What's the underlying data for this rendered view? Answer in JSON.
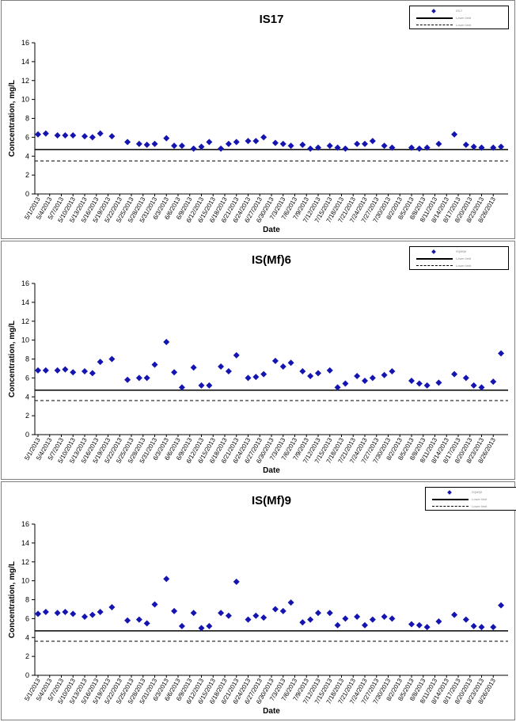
{
  "chart_data": [
    {
      "type": "scatter",
      "title": "IS17",
      "xlabel": "Date",
      "ylabel": "Concentration, mg/L",
      "ylim": [
        0,
        16
      ],
      "yticks": [
        0,
        2,
        4,
        6,
        8,
        10,
        12,
        14,
        16
      ],
      "x_tick_labels": [
        "5/1/2013",
        "5/4/2013",
        "5/7/2013",
        "5/10/2013",
        "5/13/2013",
        "5/16/2013",
        "5/19/2013",
        "5/22/2013",
        "5/25/2013",
        "5/28/2013",
        "5/31/2013",
        "6/3/2013",
        "6/6/2013",
        "6/9/2013",
        "6/12/2013",
        "6/15/2013",
        "6/18/2013",
        "6/21/2013",
        "6/24/2013",
        "6/27/2013",
        "6/30/2013",
        "7/3/2013",
        "7/6/2013",
        "7/9/2013",
        "7/12/2013",
        "7/15/2013",
        "7/18/2013",
        "7/21/2013",
        "7/24/2013",
        "7/27/2013",
        "7/30/2013",
        "8/2/2013",
        "8/5/2013",
        "8/8/2013",
        "8/11/2013",
        "8/14/2013",
        "8/17/2013",
        "8/20/2013",
        "8/23/2013",
        "8/26/2013"
      ],
      "grid": false,
      "legend_position": "top-right",
      "legend_labels": [
        "IS17",
        "Lower limit",
        "Lower limit"
      ],
      "series": [
        {
          "marker": "diamond",
          "color": "#1414b0",
          "x": [
            "5/1/2013",
            "5/3/2013",
            "5/6/2013",
            "5/8/2013",
            "5/10/2013",
            "5/13/2013",
            "5/15/2013",
            "5/17/2013",
            "5/20/2013",
            "5/24/2013",
            "5/27/2013",
            "5/29/2013",
            "5/31/2013",
            "6/3/2013",
            "6/5/2013",
            "6/7/2013",
            "6/10/2013",
            "6/12/2013",
            "6/14/2013",
            "6/17/2013",
            "6/19/2013",
            "6/21/2013",
            "6/24/2013",
            "6/26/2013",
            "6/28/2013",
            "7/1/2013",
            "7/3/2013",
            "7/5/2013",
            "7/8/2013",
            "7/10/2013",
            "7/12/2013",
            "7/15/2013",
            "7/17/2013",
            "7/19/2013",
            "7/22/2013",
            "7/24/2013",
            "7/26/2013",
            "7/29/2013",
            "7/31/2013",
            "8/5/2013",
            "8/7/2013",
            "8/9/2013",
            "8/12/2013",
            "8/16/2013",
            "8/19/2013",
            "8/21/2013",
            "8/23/2013",
            "8/26/2013",
            "8/28/2013"
          ],
          "y": [
            6.3,
            6.4,
            6.2,
            6.2,
            6.2,
            6.1,
            6.0,
            6.4,
            6.1,
            5.5,
            5.3,
            5.2,
            5.3,
            5.9,
            5.1,
            5.1,
            4.8,
            5.0,
            5.5,
            4.8,
            5.3,
            5.5,
            5.6,
            5.6,
            6.0,
            5.4,
            5.3,
            5.1,
            5.2,
            4.8,
            4.9,
            5.1,
            4.9,
            4.8,
            5.3,
            5.3,
            5.6,
            5.1,
            4.9,
            4.9,
            4.8,
            4.9,
            5.3,
            6.3,
            5.2,
            5.0,
            4.9,
            4.9,
            5.0
          ]
        }
      ],
      "reference_lines": [
        {
          "style": "solid",
          "y": 4.7
        },
        {
          "style": "dashed",
          "y": 3.5
        }
      ]
    },
    {
      "type": "scatter",
      "title": "IS(Mf)6",
      "xlabel": "Date",
      "ylabel": "Concentration, mg/L",
      "ylim": [
        0,
        16
      ],
      "yticks": [
        0,
        2,
        4,
        6,
        8,
        10,
        12,
        14,
        16
      ],
      "x_tick_labels": [
        "5/1/2013",
        "5/4/2013",
        "5/7/2013",
        "5/10/2013",
        "5/13/2013",
        "5/16/2013",
        "5/19/2013",
        "5/22/2013",
        "5/25/2013",
        "5/28/2013",
        "5/31/2013",
        "6/3/2013",
        "6/6/2013",
        "6/9/2013",
        "6/12/2013",
        "6/15/2013",
        "6/18/2013",
        "6/21/2013",
        "6/24/2013",
        "6/27/2013",
        "6/30/2013",
        "7/3/2013",
        "7/6/2013",
        "7/9/2013",
        "7/12/2013",
        "7/15/2013",
        "7/18/2013",
        "7/21/2013",
        "7/24/2013",
        "7/27/2013",
        "7/30/2013",
        "8/2/2013",
        "8/5/2013",
        "8/8/2013",
        "8/11/2013",
        "8/14/2013",
        "8/17/2013",
        "8/20/2013",
        "8/23/2013",
        "8/26/2013"
      ],
      "grid": false,
      "legend_position": "top-right",
      "legend_labels": [
        "IS(Mf)6",
        "Lower limit",
        "Lower limit"
      ],
      "series": [
        {
          "marker": "diamond",
          "color": "#1414b0",
          "x": [
            "5/1/2013",
            "5/3/2013",
            "5/6/2013",
            "5/8/2013",
            "5/10/2013",
            "5/13/2013",
            "5/15/2013",
            "5/17/2013",
            "5/20/2013",
            "5/24/2013",
            "5/27/2013",
            "5/29/2013",
            "5/31/2013",
            "6/3/2013",
            "6/5/2013",
            "6/7/2013",
            "6/10/2013",
            "6/12/2013",
            "6/14/2013",
            "6/17/2013",
            "6/19/2013",
            "6/21/2013",
            "6/24/2013",
            "6/26/2013",
            "6/28/2013",
            "7/1/2013",
            "7/3/2013",
            "7/5/2013",
            "7/8/2013",
            "7/10/2013",
            "7/12/2013",
            "7/15/2013",
            "7/17/2013",
            "7/19/2013",
            "7/22/2013",
            "7/24/2013",
            "7/26/2013",
            "7/29/2013",
            "7/31/2013",
            "8/5/2013",
            "8/7/2013",
            "8/9/2013",
            "8/12/2013",
            "8/16/2013",
            "8/19/2013",
            "8/21/2013",
            "8/23/2013",
            "8/26/2013",
            "8/28/2013"
          ],
          "y": [
            6.8,
            6.8,
            6.8,
            6.9,
            6.6,
            6.7,
            6.5,
            7.7,
            8.0,
            5.8,
            6.0,
            6.0,
            7.4,
            9.8,
            6.6,
            5.0,
            7.1,
            5.2,
            5.2,
            7.2,
            6.7,
            8.4,
            6.0,
            6.1,
            6.4,
            7.8,
            7.2,
            7.6,
            6.7,
            6.2,
            6.5,
            6.8,
            5.0,
            5.4,
            6.2,
            5.7,
            6.0,
            6.3,
            6.7,
            5.7,
            5.4,
            5.2,
            5.5,
            6.4,
            6.0,
            5.2,
            5.0,
            5.6,
            8.6
          ]
        }
      ],
      "reference_lines": [
        {
          "style": "solid",
          "y": 4.7
        },
        {
          "style": "dashed",
          "y": 3.6
        }
      ]
    },
    {
      "type": "scatter",
      "title": "IS(Mf)9",
      "xlabel": "Date",
      "ylabel": "Concentration, mg/L",
      "ylim": [
        0,
        16
      ],
      "yticks": [
        0,
        2,
        4,
        6,
        8,
        10,
        12,
        14,
        16
      ],
      "x_tick_labels": [
        "5/1/2013",
        "5/4/2013",
        "5/7/2013",
        "5/10/2013",
        "5/13/2013",
        "5/16/2013",
        "5/19/2013",
        "5/22/2013",
        "5/25/2013",
        "5/28/2013",
        "5/31/2013",
        "6/3/2013",
        "6/6/2013",
        "6/9/2013",
        "6/12/2013",
        "6/15/2013",
        "6/18/2013",
        "6/21/2013",
        "6/24/2013",
        "6/27/2013",
        "6/30/2013",
        "7/3/2013",
        "7/6/2013",
        "7/9/2013",
        "7/12/2013",
        "7/15/2013",
        "7/18/2013",
        "7/21/2013",
        "7/24/2013",
        "7/27/2013",
        "7/30/2013",
        "8/2/2013",
        "8/5/2013",
        "8/8/2013",
        "8/11/2013",
        "8/14/2013",
        "8/17/2013",
        "8/20/2013",
        "8/23/2013",
        "8/26/2013"
      ],
      "grid": false,
      "legend_position": "top-right",
      "legend_labels": [
        "IS(Mf)9",
        "Lower limit",
        "Lower limit"
      ],
      "series": [
        {
          "marker": "diamond",
          "color": "#1414b0",
          "x": [
            "5/1/2013",
            "5/3/2013",
            "5/6/2013",
            "5/8/2013",
            "5/10/2013",
            "5/13/2013",
            "5/15/2013",
            "5/17/2013",
            "5/20/2013",
            "5/24/2013",
            "5/27/2013",
            "5/29/2013",
            "5/31/2013",
            "6/3/2013",
            "6/5/2013",
            "6/7/2013",
            "6/10/2013",
            "6/12/2013",
            "6/14/2013",
            "6/17/2013",
            "6/19/2013",
            "6/21/2013",
            "6/24/2013",
            "6/26/2013",
            "6/28/2013",
            "7/1/2013",
            "7/3/2013",
            "7/5/2013",
            "7/8/2013",
            "7/10/2013",
            "7/12/2013",
            "7/15/2013",
            "7/17/2013",
            "7/19/2013",
            "7/22/2013",
            "7/24/2013",
            "7/26/2013",
            "7/29/2013",
            "7/31/2013",
            "8/5/2013",
            "8/7/2013",
            "8/9/2013",
            "8/12/2013",
            "8/16/2013",
            "8/19/2013",
            "8/21/2013",
            "8/23/2013",
            "8/26/2013",
            "8/28/2013"
          ],
          "y": [
            6.5,
            6.7,
            6.6,
            6.7,
            6.5,
            6.2,
            6.4,
            6.7,
            7.2,
            5.8,
            5.9,
            5.5,
            7.5,
            10.2,
            6.8,
            5.2,
            6.6,
            5.0,
            5.2,
            6.6,
            6.3,
            9.9,
            5.9,
            6.3,
            6.1,
            7.0,
            6.8,
            7.7,
            5.6,
            5.9,
            6.6,
            6.6,
            5.3,
            6.0,
            6.2,
            5.3,
            5.9,
            6.2,
            6.0,
            5.4,
            5.3,
            5.1,
            5.7,
            6.4,
            5.9,
            5.2,
            5.1,
            5.1,
            7.4
          ]
        }
      ],
      "reference_lines": [
        {
          "style": "solid",
          "y": 4.7
        },
        {
          "style": "dashed",
          "y": 3.6
        }
      ]
    }
  ]
}
